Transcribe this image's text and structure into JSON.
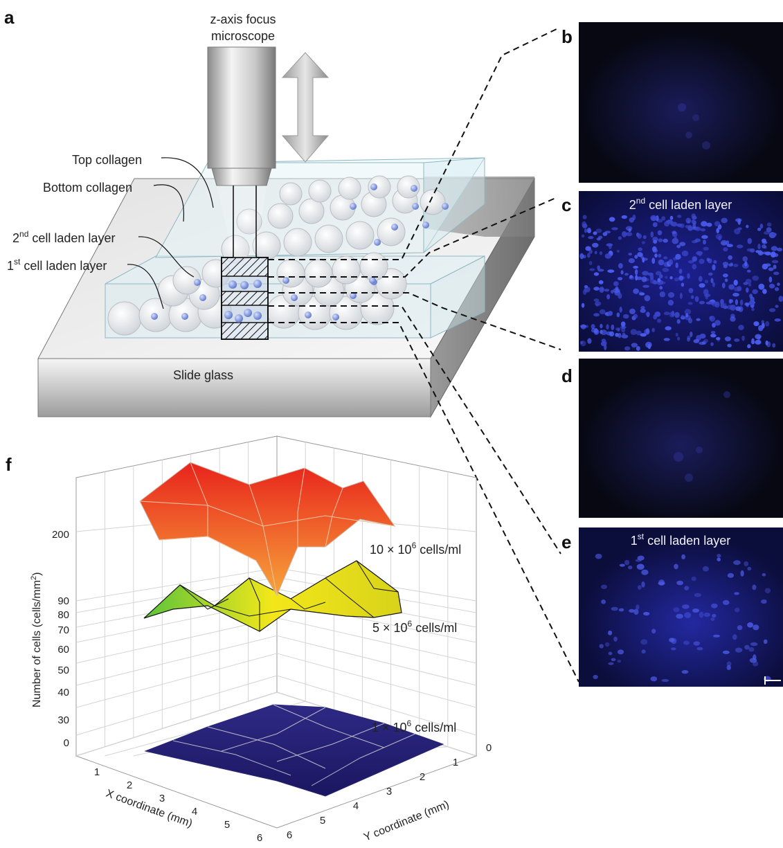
{
  "panels": {
    "a": "a",
    "b": "b",
    "c": "c",
    "d": "d",
    "e": "e",
    "f": "f"
  },
  "schematic": {
    "microscope_label_line1": "z-axis focus",
    "microscope_label_line2": "microscope",
    "top_collagen": "Top collagen",
    "bottom_collagen": "Bottom collagen",
    "layer2_ordinal": "2",
    "layer2_sup": "nd",
    "layer2_rest": " cell laden layer",
    "layer1_ordinal": "1",
    "layer1_sup": "st",
    "layer1_rest": " cell laden layer",
    "slide_glass": "Slide glass"
  },
  "micrographs": {
    "c_ordinal": "2",
    "c_sup": "nd",
    "c_rest": " cell laden layer",
    "e_ordinal": "1",
    "e_sup": "st",
    "e_rest": " cell laden layer"
  },
  "chart_data": {
    "type": "surface3d",
    "xlabel": "X coordinate (mm)",
    "ylabel": "Y coordinate (mm)",
    "zlabel_main": "Number of cells (cells/mm",
    "zlabel_sup": "2",
    "zlabel_end": ")",
    "x_ticks": [
      "1",
      "2",
      "3",
      "4",
      "5",
      "6"
    ],
    "y_ticks": [
      "0",
      "1",
      "2",
      "3",
      "4",
      "5",
      "6"
    ],
    "z_ticks": [
      "0",
      "30",
      "40",
      "50",
      "60",
      "70",
      "80",
      "90",
      "200"
    ],
    "series": [
      {
        "name_pre": "10 × 10",
        "name_sup": "6",
        "name_post": " cells/ml",
        "color_top": "#e8231c",
        "color_bottom": "#f7a43a"
      },
      {
        "name_pre": "5 × 10",
        "name_sup": "6",
        "name_post": " cells/ml",
        "color_top": "#f3e71a",
        "color_bottom": "#5cc43a"
      },
      {
        "name_pre": "1 × 10",
        "name_sup": "6",
        "name_post": " cells/ml",
        "color_top": "#2e2a85",
        "color_bottom": "#1b1660"
      }
    ]
  }
}
